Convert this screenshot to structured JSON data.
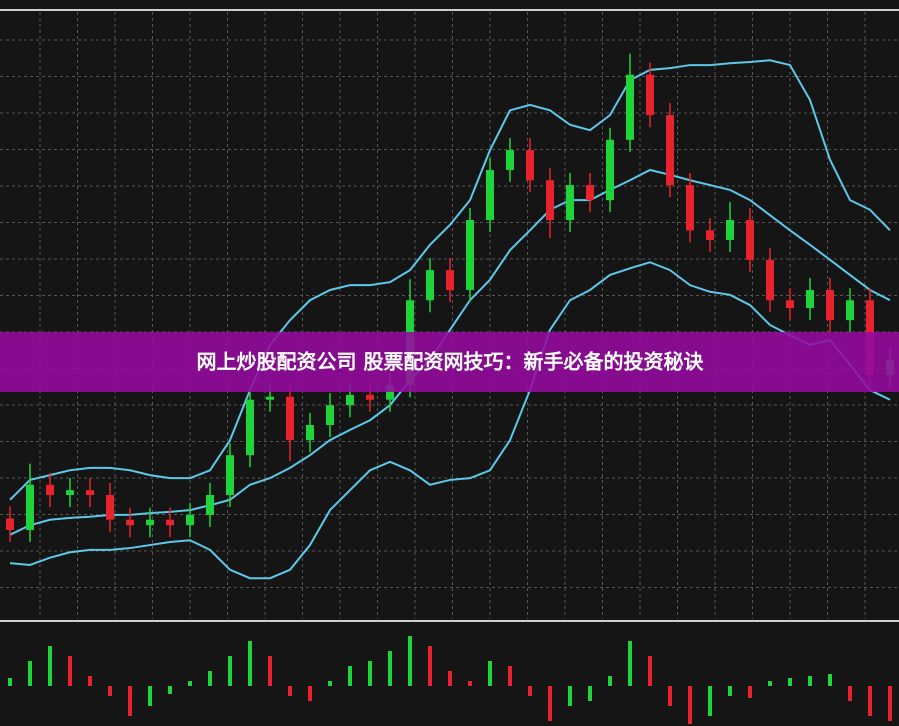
{
  "banner": {
    "title": "网上炒股配资公司 股票配资网技巧：新手必备的投资秘诀"
  },
  "chart_data": [
    {
      "type": "candlestick",
      "ylim": [
        0,
        100
      ],
      "grid": true,
      "up_color": "#1ed43a",
      "down_color": "#e8232d",
      "open": [
        16.0,
        14.1,
        21.6,
        19.9,
        20.7,
        19.9,
        15.8,
        14.9,
        15.8,
        14.9,
        16.6,
        19.9,
        26.5,
        35.7,
        36.2,
        29.0,
        31.5,
        34.8,
        36.5,
        35.7,
        38.1,
        52.2,
        57.2,
        53.9,
        65.5,
        73.8,
        77.1,
        72.1,
        65.5,
        71.3,
        68.8,
        78.8,
        89.6,
        82.9,
        71.3,
        63.8,
        62.2,
        65.5,
        58.9,
        52.2,
        50.9,
        53.9,
        48.9,
        52.2,
        39.8
      ],
      "high": [
        18.0,
        25.1,
        23.6,
        22.7,
        22.7,
        21.9,
        17.8,
        17.8,
        17.8,
        18.6,
        21.9,
        28.5,
        37.7,
        38.2,
        38.2,
        33.5,
        36.8,
        38.5,
        38.5,
        40.1,
        55.7,
        59.2,
        59.2,
        67.5,
        75.8,
        79.1,
        79.1,
        74.1,
        73.3,
        73.3,
        80.8,
        93.1,
        91.6,
        84.9,
        73.3,
        65.8,
        68.5,
        67.5,
        60.9,
        54.2,
        55.9,
        55.9,
        54.2,
        54.2,
        44.3
      ],
      "low": [
        12.1,
        12.1,
        17.9,
        17.9,
        17.9,
        13.8,
        12.9,
        12.9,
        12.9,
        12.9,
        14.6,
        17.9,
        24.5,
        33.7,
        25.5,
        27.0,
        29.5,
        32.8,
        33.7,
        33.7,
        36.1,
        50.2,
        51.9,
        51.9,
        63.5,
        71.8,
        70.1,
        62.5,
        63.5,
        66.8,
        66.8,
        76.8,
        80.9,
        69.3,
        61.8,
        60.2,
        60.2,
        56.9,
        50.2,
        48.9,
        48.9,
        46.9,
        46.9,
        37.8,
        37.8
      ],
      "close": [
        14.1,
        21.6,
        19.9,
        20.7,
        19.9,
        15.8,
        14.9,
        15.8,
        14.9,
        16.6,
        19.9,
        26.5,
        35.7,
        36.2,
        29.0,
        31.5,
        34.8,
        36.5,
        35.7,
        38.1,
        52.2,
        57.2,
        53.9,
        65.5,
        73.8,
        77.1,
        72.1,
        65.5,
        71.3,
        68.8,
        78.8,
        89.6,
        82.9,
        71.3,
        63.8,
        62.2,
        65.5,
        58.9,
        52.2,
        50.9,
        53.9,
        48.9,
        52.2,
        39.8,
        42.3
      ],
      "overlays": [
        {
          "color": "#5ec8e8",
          "values": [
            19.1,
            22.4,
            23.2,
            24.0,
            24.4,
            24.4,
            24.0,
            23.2,
            22.7,
            22.7,
            24.0,
            29.0,
            37.3,
            44.8,
            48.9,
            52.2,
            53.9,
            54.7,
            54.7,
            55.2,
            57.2,
            61.4,
            64.7,
            68.8,
            77.1,
            83.7,
            84.6,
            83.7,
            81.3,
            80.4,
            82.9,
            88.7,
            90.4,
            90.7,
            91.2,
            91.2,
            91.5,
            91.7,
            92.0,
            91.2,
            85.4,
            75.5,
            68.8,
            67.2,
            63.8
          ]
        },
        {
          "color": "#5ec8e8",
          "values": [
            13.3,
            14.9,
            15.8,
            16.1,
            16.3,
            16.6,
            16.6,
            16.9,
            17.1,
            17.4,
            18.2,
            19.1,
            21.6,
            22.7,
            24.4,
            26.5,
            29.0,
            30.7,
            32.3,
            34.8,
            38.9,
            42.3,
            47.3,
            52.2,
            55.6,
            60.5,
            63.8,
            67.2,
            68.8,
            68.8,
            70.5,
            72.1,
            73.8,
            73.0,
            72.1,
            71.3,
            70.5,
            68.8,
            66.3,
            63.8,
            61.4,
            58.9,
            56.4,
            53.9,
            52.2
          ]
        },
        {
          "color": "#5ec8e8",
          "values": [
            8.6,
            8.3,
            9.5,
            10.4,
            10.8,
            10.8,
            11.1,
            11.6,
            12.1,
            12.4,
            10.8,
            7.5,
            6.1,
            6.1,
            7.5,
            11.6,
            17.4,
            20.7,
            24.0,
            25.4,
            24.0,
            21.6,
            22.4,
            22.7,
            24.0,
            29.0,
            37.3,
            47.3,
            52.2,
            53.9,
            56.4,
            57.5,
            58.5,
            57.2,
            54.7,
            53.6,
            53.1,
            51.4,
            48.1,
            46.4,
            44.8,
            45.6,
            41.5,
            37.3,
            35.7
          ]
        }
      ]
    },
    {
      "type": "bar",
      "ylim": [
        -40,
        60
      ],
      "up_color": "#1ed43a",
      "down_color": "#e8232d",
      "values": [
        8,
        25,
        40,
        30,
        10,
        -10,
        -30,
        -20,
        -8,
        5,
        15,
        30,
        45,
        30,
        -10,
        -15,
        5,
        20,
        25,
        35,
        50,
        40,
        15,
        5,
        25,
        20,
        -10,
        -35,
        -20,
        -15,
        10,
        45,
        30,
        -20,
        -38,
        -30,
        -10,
        -12,
        5,
        8,
        10,
        12,
        -15,
        -30,
        -35
      ]
    }
  ]
}
